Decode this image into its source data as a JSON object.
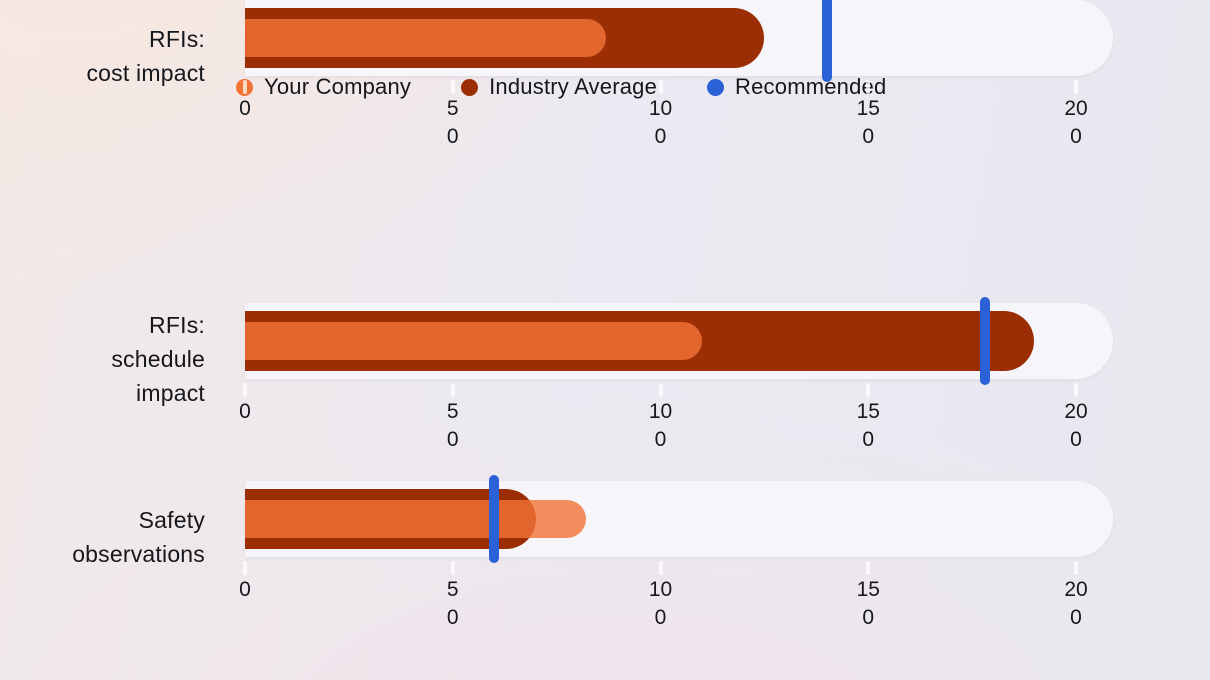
{
  "colors": {
    "company": "rgba(243,115,54,0.8)",
    "company_solid": "#f37336",
    "industry": "#9c2e05",
    "recommended": "#2b61d7",
    "track": "#f6f6fa",
    "text": "#15171c"
  },
  "legend": {
    "items": [
      {
        "label": "Your Company",
        "color": "#f37336"
      },
      {
        "label": "Industry Average",
        "color": "#9c2e05"
      },
      {
        "label": "Recommended",
        "color": "#2b61d7"
      }
    ]
  },
  "rows": [
    {
      "label": "RFIs: schedule impact",
      "label_lines": [
        "RFIs:",
        "schedule",
        "impact"
      ],
      "company": 110,
      "industry": 190,
      "recommended": 178
    },
    {
      "label": "Safety observations",
      "label_lines": [
        "Safety",
        "observations"
      ],
      "company": 82,
      "industry": 70,
      "recommended": 60
    },
    {
      "label": "RFIs: cost impact",
      "label_lines": [
        "RFIs:",
        "cost impact"
      ],
      "company": 87,
      "industry": 125,
      "recommended": 140
    }
  ],
  "axis": {
    "min": 0,
    "max": 200,
    "ticks": [
      {
        "value": 0,
        "lines": [
          "0"
        ]
      },
      {
        "value": 50,
        "lines": [
          "5",
          "0"
        ]
      },
      {
        "value": 100,
        "lines": [
          "10",
          "0"
        ]
      },
      {
        "value": 150,
        "lines": [
          "15",
          "0"
        ]
      },
      {
        "value": 200,
        "lines": [
          "20",
          "0"
        ]
      }
    ]
  },
  "chart_data": {
    "type": "bar",
    "variant": "horizontal-bullet",
    "title": "",
    "xlabel": "",
    "ylabel": "",
    "categories": [
      "RFIs: schedule impact",
      "Safety observations",
      "RFIs: cost impact"
    ],
    "series": [
      {
        "name": "Your Company",
        "type": "bar",
        "color": "#f37336",
        "values": [
          110,
          82,
          87
        ]
      },
      {
        "name": "Industry Average",
        "type": "bar",
        "color": "#9c2e05",
        "values": [
          190,
          70,
          125
        ]
      },
      {
        "name": "Recommended",
        "type": "threshold-marker",
        "color": "#2b61d7",
        "values": [
          178,
          60,
          140
        ]
      }
    ],
    "x_ticks": [
      0,
      50,
      100,
      150,
      200
    ],
    "x_tick_labels_wrapped": [
      [
        "0"
      ],
      [
        "5",
        "0"
      ],
      [
        "10",
        "0"
      ],
      [
        "15",
        "0"
      ],
      [
        "20",
        "0"
      ]
    ],
    "xlim": [
      0,
      209
    ],
    "grid": false,
    "legend_position": "top"
  }
}
